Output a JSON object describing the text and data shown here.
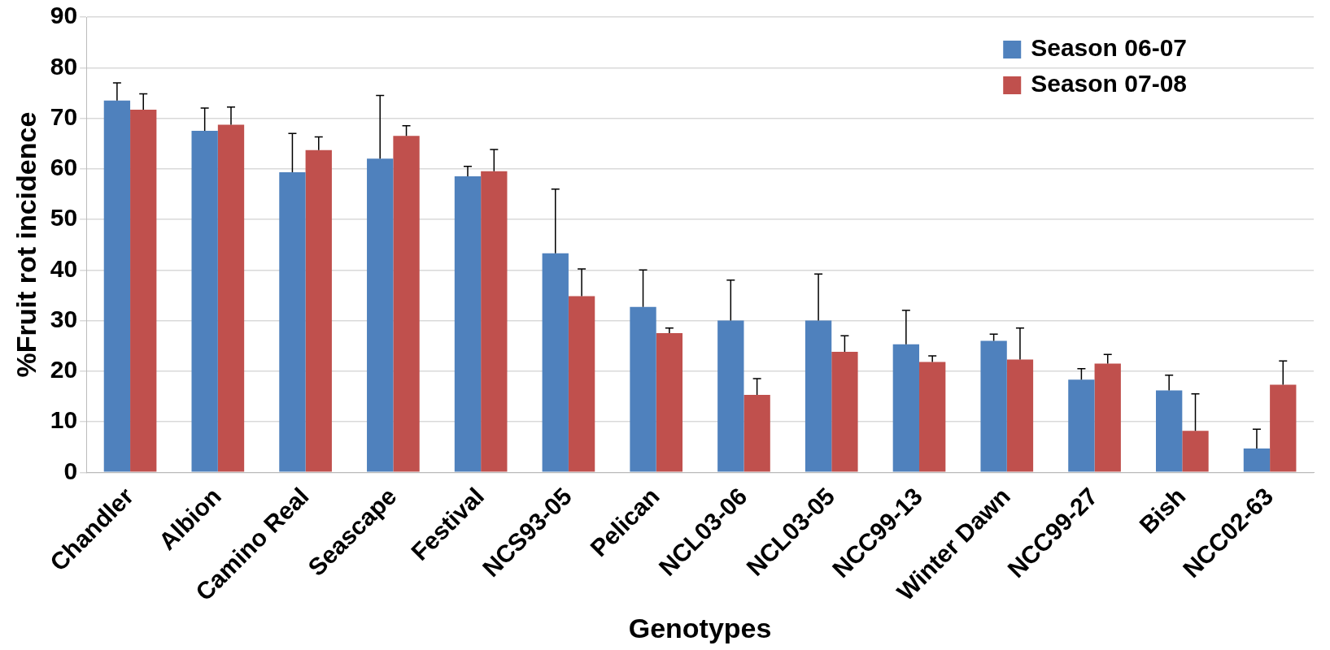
{
  "chart_data": {
    "type": "bar",
    "xlabel": "Genotypes",
    "ylabel": "%Fruit rot incidence",
    "categories": [
      "Chandler",
      "Albion",
      "Camino Real",
      "Seascape",
      "Festival",
      "NCS93-05",
      "Pelican",
      "NCL03-06",
      "NCL03-05",
      "NCC99-13",
      "Winter Dawn",
      "NCC99-27",
      "Bish",
      "NCC02-63"
    ],
    "series": [
      {
        "name": "Season 06-07",
        "color": "#4f81bd",
        "values": [
          73.5,
          67.5,
          59.3,
          62,
          58.5,
          43.3,
          32.7,
          30,
          30,
          25.3,
          26,
          18.3,
          16.2,
          4.7
        ],
        "errors": [
          [
            73.5,
            77
          ],
          [
            67.5,
            72
          ],
          [
            59.3,
            67
          ],
          [
            62,
            74.5
          ],
          [
            58.5,
            60.5
          ],
          [
            43.3,
            56
          ],
          [
            32.7,
            40
          ],
          [
            30,
            38
          ],
          [
            30,
            39.2
          ],
          [
            25.3,
            32
          ],
          [
            26,
            27.3
          ],
          [
            18.3,
            20.5
          ],
          [
            16.2,
            19.2
          ],
          [
            4.7,
            8.5
          ]
        ]
      },
      {
        "name": "Season 07-08",
        "color": "#c0504d",
        "values": [
          71.7,
          68.7,
          63.7,
          66.5,
          59.5,
          34.8,
          27.5,
          15.3,
          23.8,
          21.8,
          22.3,
          21.5,
          8.2,
          17.3
        ],
        "errors": [
          [
            71.7,
            74.8
          ],
          [
            68.7,
            72.2
          ],
          [
            63.7,
            66.3
          ],
          [
            66.5,
            68.5
          ],
          [
            59.5,
            63.8
          ],
          [
            34.8,
            40.2
          ],
          [
            27.5,
            28.5
          ],
          [
            15.3,
            18.5
          ],
          [
            23.8,
            27
          ],
          [
            21.8,
            23
          ],
          [
            22.3,
            28.5
          ],
          [
            21.5,
            23.3
          ],
          [
            8.2,
            15.5
          ],
          [
            17.3,
            22
          ]
        ]
      }
    ],
    "ylim": [
      0,
      90
    ],
    "yticks": [
      0,
      10,
      20,
      30,
      40,
      50,
      60,
      70,
      80,
      90
    ],
    "grid": "y",
    "legend": "top right"
  }
}
